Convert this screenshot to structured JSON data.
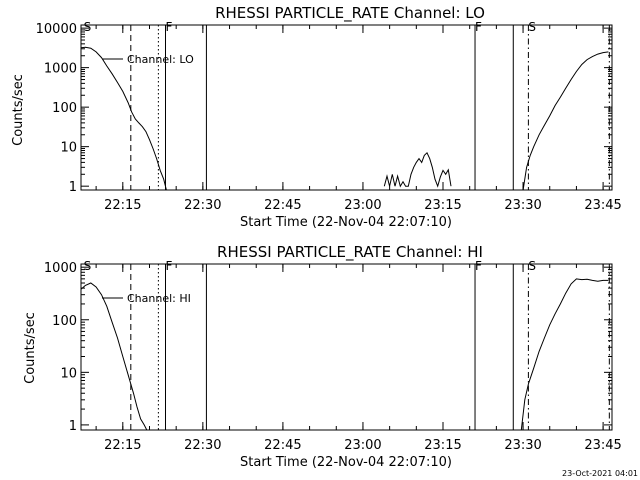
{
  "footer": {
    "timestamp": "23-Oct-2021 04:01"
  },
  "chart_data": [
    {
      "type": "line",
      "title": "RHESSI PARTICLE_RATE Channel: LO",
      "xlabel": "Start Time (22-Nov-04 22:07:10)",
      "ylabel": "Counts/sec",
      "yscale": "log",
      "ylim": [
        0.8,
        12000
      ],
      "xlim": [
        "22:07:10",
        "23:46:40"
      ],
      "x_ticks": [
        "22:15",
        "22:30",
        "22:45",
        "23:00",
        "23:15",
        "23:30",
        "23:45"
      ],
      "y_ticks": [
        "1",
        "10",
        "100",
        "1000",
        "10000"
      ],
      "legend": {
        "label": "Channel: LO",
        "placement": "top-left"
      },
      "markers": [
        {
          "label": "S",
          "time": "22:07:40",
          "style": "none"
        },
        {
          "label": "",
          "time": "22:16:30",
          "style": "dashed"
        },
        {
          "label": "",
          "time": "22:21:40",
          "style": "dotted"
        },
        {
          "label": "F",
          "time": "22:23:00",
          "style": "solid"
        },
        {
          "label": "",
          "time": "22:30:40",
          "style": "solid"
        },
        {
          "label": "F",
          "time": "23:21:00",
          "style": "solid"
        },
        {
          "label": "",
          "time": "23:28:10",
          "style": "solid"
        },
        {
          "label": "S",
          "time": "23:31:00",
          "style": "dashdot"
        },
        {
          "label": "",
          "time": "23:46:10",
          "style": "dashdot"
        }
      ],
      "series": [
        {
          "segments": [
            {
              "x": [
                "22:07:10",
                "22:08:00",
                "22:09:00",
                "22:10:00",
                "22:11:00",
                "22:12:00",
                "22:13:00",
                "22:14:00",
                "22:15:00",
                "22:16:00",
                "22:16:40",
                "22:17:20",
                "22:18:00",
                "22:18:40",
                "22:19:20",
                "22:20:00",
                "22:20:40",
                "22:21:20",
                "22:22:00",
                "22:22:40",
                "22:23:10"
              ],
              "y": [
                3200,
                3300,
                3100,
                2500,
                1800,
                1100,
                700,
                420,
                250,
                130,
                75,
                50,
                40,
                32,
                24,
                15,
                9,
                5,
                2.5,
                1.5,
                0.8
              ]
            },
            {
              "x": [
                "23:04:00",
                "23:04:30",
                "23:05:00",
                "23:05:30",
                "23:06:00",
                "23:06:30",
                "23:07:00",
                "23:07:30",
                "23:08:00",
                "23:08:30",
                "23:09:00",
                "23:09:30",
                "23:10:00",
                "23:10:30",
                "23:11:00",
                "23:11:30",
                "23:12:00",
                "23:12:30",
                "23:13:00",
                "23:13:30",
                "23:14:00",
                "23:14:30",
                "23:15:00",
                "23:15:30",
                "23:16:00",
                "23:16:30"
              ],
              "y": [
                1,
                1.8,
                1,
                2,
                1,
                1.8,
                1,
                1.3,
                1,
                1,
                2,
                3,
                4,
                5,
                4,
                6,
                7,
                5,
                3,
                1.5,
                1,
                1.7,
                2.5,
                2,
                2.6,
                1
              ]
            },
            {
              "x": [
                "23:30:00",
                "23:30:40",
                "23:31:20",
                "23:32:00",
                "23:33:00",
                "23:34:00",
                "23:35:00",
                "23:36:00",
                "23:37:00",
                "23:38:00",
                "23:39:00",
                "23:40:00",
                "23:41:00",
                "23:42:00",
                "23:43:00",
                "23:44:00",
                "23:45:00",
                "23:46:00"
              ],
              "y": [
                0.8,
                3,
                6,
                10,
                20,
                35,
                60,
                110,
                180,
                300,
                500,
                800,
                1200,
                1600,
                1900,
                2200,
                2400,
                2500
              ]
            }
          ]
        }
      ]
    },
    {
      "type": "line",
      "title": "RHESSI PARTICLE_RATE Channel: HI",
      "xlabel": "Start Time (22-Nov-04 22:07:10)",
      "ylabel": "Counts/sec",
      "yscale": "log",
      "ylim": [
        0.8,
        1150
      ],
      "xlim": [
        "22:07:10",
        "23:46:40"
      ],
      "x_ticks": [
        "22:15",
        "22:30",
        "22:45",
        "23:00",
        "23:15",
        "23:30",
        "23:45"
      ],
      "y_ticks": [
        "1",
        "10",
        "100",
        "1000"
      ],
      "legend": {
        "label": "Channel: HI",
        "placement": "top-left"
      },
      "markers": [
        {
          "label": "S",
          "time": "22:07:40",
          "style": "none"
        },
        {
          "label": "",
          "time": "22:16:30",
          "style": "dashed"
        },
        {
          "label": "",
          "time": "22:21:40",
          "style": "dotted"
        },
        {
          "label": "F",
          "time": "22:23:00",
          "style": "solid"
        },
        {
          "label": "",
          "time": "22:30:40",
          "style": "solid"
        },
        {
          "label": "F",
          "time": "23:21:00",
          "style": "solid"
        },
        {
          "label": "",
          "time": "23:28:10",
          "style": "solid"
        },
        {
          "label": "S",
          "time": "23:31:00",
          "style": "dashdot"
        },
        {
          "label": "",
          "time": "23:46:10",
          "style": "dashdot"
        }
      ],
      "series": [
        {
          "segments": [
            {
              "x": [
                "22:07:10",
                "22:08:00",
                "22:09:00",
                "22:10:00",
                "22:11:00",
                "22:12:00",
                "22:13:00",
                "22:14:00",
                "22:15:00",
                "22:16:00",
                "22:17:00",
                "22:17:40",
                "22:18:20",
                "22:19:00",
                "22:19:30"
              ],
              "y": [
                380,
                450,
                500,
                420,
                300,
                180,
                90,
                45,
                20,
                9,
                4,
                2.2,
                1.3,
                1,
                0.8
              ]
            },
            {
              "x": [
                "23:29:40",
                "23:30:20",
                "23:31:00",
                "23:32:00",
                "23:33:00",
                "23:34:00",
                "23:35:00",
                "23:36:00",
                "23:37:00",
                "23:38:00",
                "23:39:00",
                "23:40:00",
                "23:41:00",
                "23:42:00",
                "23:43:00",
                "23:44:00",
                "23:45:00",
                "23:46:00"
              ],
              "y": [
                0.8,
                3,
                6,
                12,
                25,
                45,
                80,
                130,
                200,
                320,
                480,
                600,
                580,
                590,
                560,
                540,
                560,
                560
              ]
            }
          ]
        }
      ]
    }
  ]
}
